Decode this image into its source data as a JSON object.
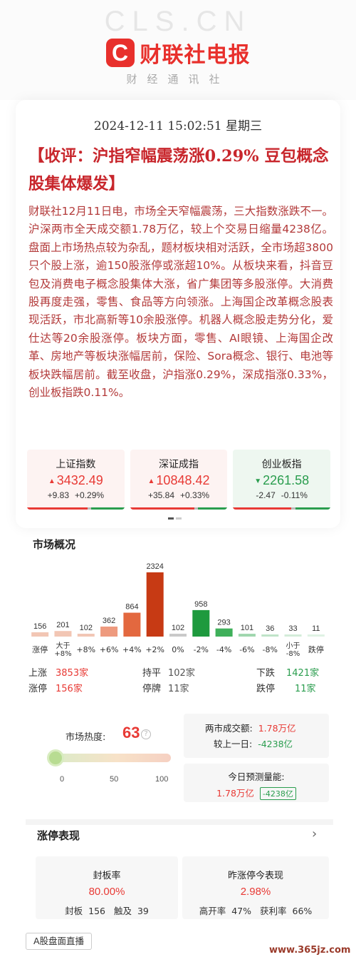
{
  "header": {
    "watermark": "CLS.CN",
    "logo_mark": "C",
    "logo_name": "财联社电报",
    "tagline": "财经通讯社"
  },
  "article": {
    "datetime": "2024-12-11 15:02:51 星期三",
    "headline": "【收评：沪指窄幅震荡涨0.29% 豆包概念股集体爆发】",
    "body": "财联社12月11日电，市场全天窄幅震荡，三大指数涨跌不一。沪深两市全天成交额1.78万亿，较上个交易日缩量4238亿。盘面上市场热点较为杂乱，题材板块相对活跃，全市场超3800只个股上涨，逾150股涨停或涨超10%。从板块来看，抖音豆包及消费电子概念股集体大涨，省广集团等多股涨停。大消费股再度走强，零售、食品等方向领涨。上海国企改革概念股表现活跃，市北高新等10余股涨停。机器人概念股走势分化，爱仕达等20余股涨停。板块方面，零售、AI眼镜、上海国企改革、房地产等板块涨幅居前，保险、Sora概念、银行、电池等板块跌幅居前。截至收盘，沪指涨0.29%，深成指涨0.33%，创业板指跌0.11%。"
  },
  "indices": [
    {
      "name": "上证指数",
      "value": "3432.49",
      "change": "+9.83",
      "pct": "+0.29%",
      "direction": "up",
      "arrow": "▲"
    },
    {
      "name": "深证成指",
      "value": "10848.42",
      "change": "+35.84",
      "pct": "+0.33%",
      "direction": "up",
      "arrow": "▲"
    },
    {
      "name": "创业板指",
      "value": "2261.58",
      "change": "-2.47",
      "pct": "-0.11%",
      "direction": "down",
      "arrow": "▼"
    }
  ],
  "market": {
    "title": "市场概况",
    "stats": {
      "rise_label": "上涨",
      "rise_value": "3853家",
      "flat_label": "持平",
      "flat_value": "102家",
      "fall_label": "下跌",
      "fall_value": "1421家",
      "limit_up_label": "涨停",
      "limit_up_value": "156家",
      "suspend_label": "停牌",
      "suspend_value": "11家",
      "limit_down_label": "跌停",
      "limit_down_value": "11家"
    }
  },
  "chart_data": {
    "type": "bar",
    "categories": [
      "涨停",
      "大于+8%",
      "+8%",
      "+6%",
      "+4%",
      "+2%",
      "0%",
      "-2%",
      "-4%",
      "-6%",
      "-8%",
      "小于-8%",
      "跌停"
    ],
    "values": [
      156,
      201,
      102,
      362,
      864,
      2324,
      102,
      958,
      293,
      101,
      36,
      33,
      11
    ],
    "title": "",
    "xlabel": "",
    "ylabel": "",
    "ylim": [
      0,
      2324
    ],
    "colors": [
      "#f2c6b4",
      "#f2c6b4",
      "#f2c6b4",
      "#ee9a7e",
      "#e3683f",
      "#c73a14",
      "#c9c9c9",
      "#1e9a3e",
      "#3fb05a",
      "#9fd6ad",
      "#bfe4c8",
      "#d3ecd9",
      "#dff2e4"
    ]
  },
  "heat": {
    "label": "市场热度:",
    "value": "63",
    "info_icon": "?",
    "level": 0.05,
    "ticks": [
      "0",
      "50",
      "100"
    ]
  },
  "turnover": {
    "total_label": "两市成交额:",
    "total_value": "1.78万亿",
    "prev_label": "较上一日:",
    "prev_value": "-4238亿"
  },
  "forecast": {
    "label": "今日预测量能:",
    "value": "1.78万亿",
    "badge": "-4238亿"
  },
  "limit_up": {
    "title": "涨停表现",
    "seal": {
      "title": "封板率",
      "value": "80.00%",
      "sub1_label": "封板",
      "sub1_value": "156",
      "sub2_label": "触及",
      "sub2_value": "39"
    },
    "yesterday": {
      "title": "昨涨停今表现",
      "value": "2.98%",
      "sub1_label": "高开率",
      "sub1_value": "47%",
      "sub2_label": "获利率",
      "sub2_value": "66%"
    }
  },
  "footer": {
    "live_label": "A股盘面直播",
    "site_watermark": "www.365jz.com"
  }
}
